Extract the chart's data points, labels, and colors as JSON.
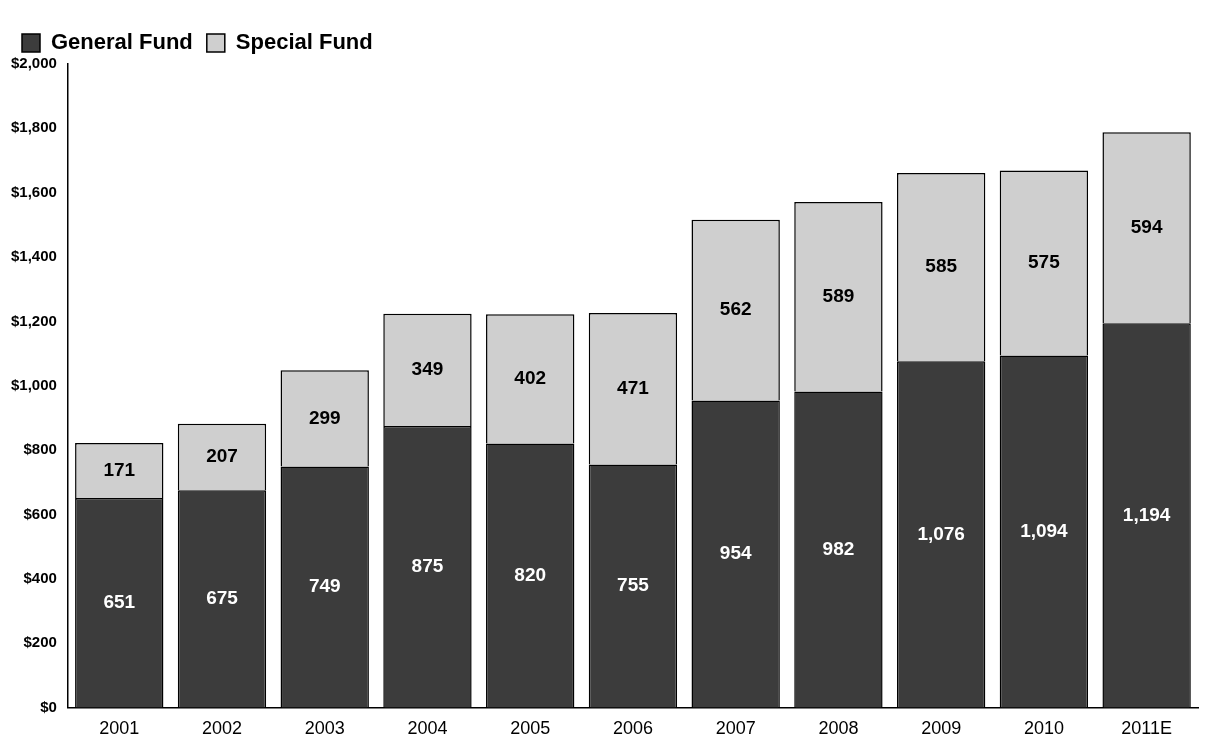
{
  "chart_data": {
    "type": "bar",
    "stacked": true,
    "categories": [
      "2001",
      "2002",
      "2003",
      "2004",
      "2005",
      "2006",
      "2007",
      "2008",
      "2009",
      "2010",
      "2011E"
    ],
    "series": [
      {
        "name": "General Fund",
        "color": "#3c3c3c",
        "values": [
          651,
          675,
          749,
          875,
          820,
          755,
          954,
          982,
          1076,
          1094,
          1194
        ],
        "value_labels": [
          "651",
          "675",
          "749",
          "875",
          "820",
          "755",
          "954",
          "982",
          "1,076",
          "1,094",
          "1,194"
        ]
      },
      {
        "name": "Special Fund",
        "color": "#cfcfcf",
        "values": [
          171,
          207,
          299,
          349,
          402,
          471,
          562,
          589,
          585,
          575,
          594
        ],
        "value_labels": [
          "171",
          "207",
          "299",
          "349",
          "402",
          "471",
          "562",
          "589",
          "585",
          "575",
          "594"
        ]
      }
    ],
    "ylim": [
      0,
      2000
    ],
    "yticks": [
      {
        "value": 0,
        "label": "$0"
      },
      {
        "value": 200,
        "label": "$200"
      },
      {
        "value": 400,
        "label": "$400"
      },
      {
        "value": 600,
        "label": "$600"
      },
      {
        "value": 800,
        "label": "$800"
      },
      {
        "value": 1000,
        "label": "$1,000"
      },
      {
        "value": 1200,
        "label": "$1,200"
      },
      {
        "value": 1400,
        "label": "$1,400"
      },
      {
        "value": 1600,
        "label": "$1,600"
      },
      {
        "value": 1800,
        "label": "$1,800"
      },
      {
        "value": 2000,
        "label": "$2,000"
      }
    ],
    "grid": false,
    "legend": "top left"
  }
}
